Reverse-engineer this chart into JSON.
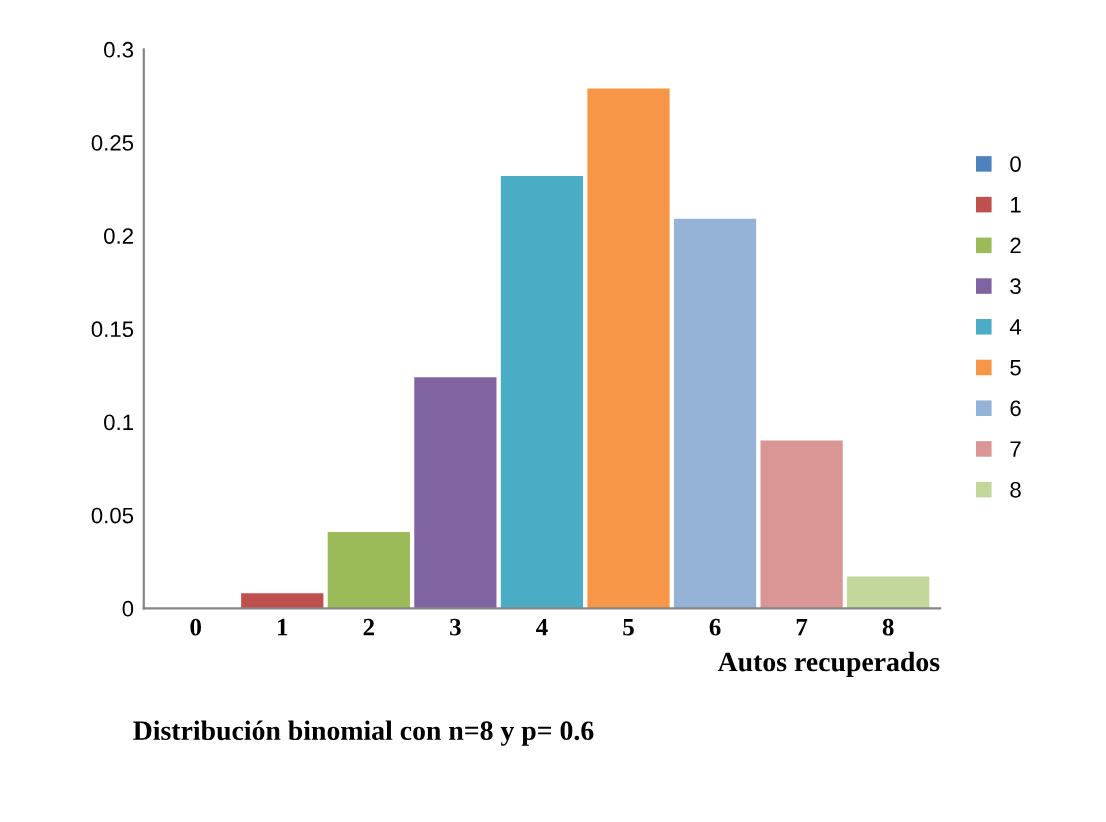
{
  "chart_data": {
    "type": "bar",
    "xlabel": "Autos recuperados",
    "annotations": [
      "Distribución binomial con n=8 y p= 0.6"
    ],
    "categories": [
      "0",
      "1",
      "2",
      "3",
      "4",
      "5",
      "6",
      "7",
      "8"
    ],
    "series": [
      {
        "name": "0",
        "color": "#4f81bd",
        "values": [
          null,
          null,
          null,
          null,
          null,
          null,
          null,
          null,
          null
        ]
      },
      {
        "name": "1",
        "color": "#c0504d",
        "values": [
          null,
          0.008,
          null,
          null,
          null,
          null,
          null,
          null,
          null
        ]
      },
      {
        "name": "2",
        "color": "#9bbb59",
        "values": [
          null,
          null,
          0.041,
          null,
          null,
          null,
          null,
          null,
          null
        ]
      },
      {
        "name": "3",
        "color": "#8064a2",
        "values": [
          null,
          null,
          null,
          0.124,
          null,
          null,
          null,
          null,
          null
        ]
      },
      {
        "name": "4",
        "color": "#4bacc6",
        "values": [
          null,
          null,
          null,
          null,
          0.232,
          null,
          null,
          null,
          null
        ]
      },
      {
        "name": "5",
        "color": "#f79646",
        "values": [
          null,
          null,
          null,
          null,
          null,
          0.279,
          null,
          null,
          null
        ]
      },
      {
        "name": "6",
        "color": "#95b3d7",
        "values": [
          null,
          null,
          null,
          null,
          null,
          null,
          0.209,
          null,
          null
        ]
      },
      {
        "name": "7",
        "color": "#d99694",
        "values": [
          null,
          null,
          null,
          null,
          null,
          null,
          null,
          0.09,
          null
        ]
      },
      {
        "name": "8",
        "color": "#c3d69b",
        "values": [
          null,
          null,
          null,
          null,
          null,
          null,
          null,
          null,
          0.017
        ]
      }
    ],
    "ylim": [
      0,
      0.3
    ],
    "yticks": [
      0,
      0.05,
      0.1,
      0.15,
      0.2,
      0.25,
      0.3
    ],
    "grid": false,
    "legend": "right"
  }
}
